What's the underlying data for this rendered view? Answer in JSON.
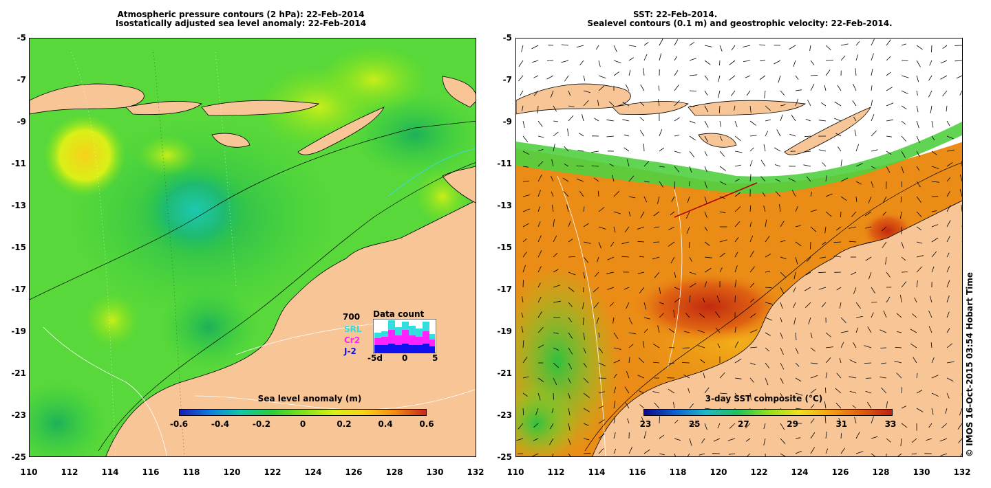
{
  "left_panel": {
    "title_line1": "Atmospheric pressure contours (2 hPa): 22-Feb-2014",
    "title_line2": "Isostatically adjusted sea level anomaly: 22-Feb-2014",
    "colorbar_title": "Sea level anomaly (m)",
    "colorbar_ticks": [
      "-0.6",
      "-0.4",
      "-0.2",
      "0",
      "0.2",
      "0.4",
      "0.6"
    ],
    "data_count": {
      "title": "Data count",
      "max_label": "700",
      "series": [
        {
          "name": "SRL",
          "color": "#33dddd"
        },
        {
          "name": "Cr2",
          "color": "#ff22ff"
        },
        {
          "name": "J-2",
          "color": "#1111ee"
        }
      ],
      "x_ticks": [
        "-5d",
        "0",
        "5"
      ]
    }
  },
  "right_panel": {
    "title_line1": "SST: 22-Feb-2014.",
    "title_line2": "Sealevel contours (0.1 m) and geostrophic velocity: 22-Feb-2014.",
    "colorbar_title": "3-day SST composite (°C)",
    "colorbar_ticks": [
      "23",
      "25",
      "27",
      "29",
      "31",
      "33"
    ]
  },
  "axes": {
    "lat_ticks": [
      "-5",
      "-7",
      "-9",
      "-11",
      "-13",
      "-15",
      "-17",
      "-19",
      "-21",
      "-23",
      "-25"
    ],
    "lon_ticks": [
      "110",
      "112",
      "114",
      "116",
      "118",
      "120",
      "122",
      "124",
      "126",
      "128",
      "130",
      "132"
    ]
  },
  "copyright": "© IMOS 16-Oct-2015 03:54 Hobart Time",
  "colors": {
    "land": "#f8c596",
    "sla_gradient": [
      "#1a1ab8",
      "#0f7fe0",
      "#13c7a8",
      "#2ecc40",
      "#7fe21a",
      "#d9f018",
      "#fbd21a",
      "#f58a12",
      "#c8281a"
    ],
    "sst_gradient": [
      "#0a0a8a",
      "#1060d0",
      "#20b8c8",
      "#20c060",
      "#90e020",
      "#f0e020",
      "#f8a010",
      "#e06010",
      "#c02010"
    ]
  }
}
